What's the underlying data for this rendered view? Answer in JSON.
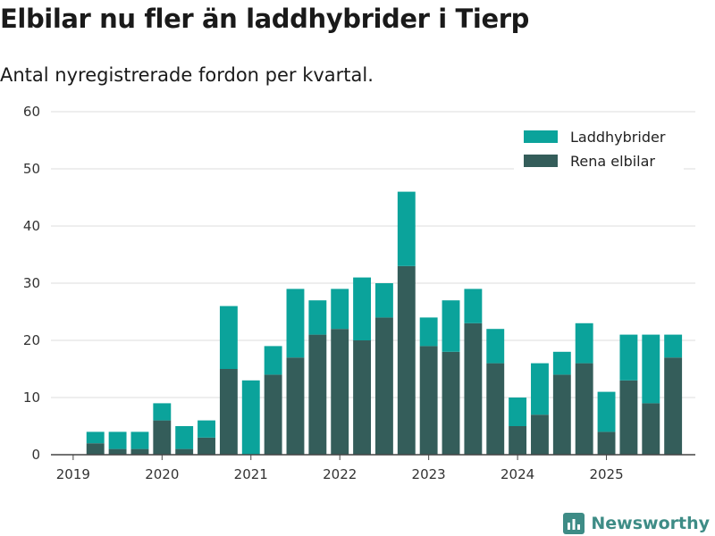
{
  "title": "Elbilar nu fler än laddhybrider i Tierp",
  "subtitle": "Antal nyregistrerade fordon per kvartal.",
  "brand": {
    "name": "Newsworthy",
    "icon": "newsworthy-logo-icon"
  },
  "colors": {
    "laddhybrider": "#0ba39b",
    "rena_elbilar": "#345d5a",
    "grid": "#dddddd",
    "axis": "#444444"
  },
  "chart_data": {
    "type": "bar",
    "stacked": true,
    "title": "Elbilar nu fler än laddhybrider i Tierp",
    "subtitle": "Antal nyregistrerade fordon per kvartal.",
    "xlabel": "",
    "ylabel": "",
    "ylim": [
      0,
      60
    ],
    "yticks": [
      0,
      10,
      20,
      30,
      40,
      50,
      60
    ],
    "xlim": [
      2018.75,
      2026.0
    ],
    "xticks": [
      2019,
      2020,
      2021,
      2022,
      2023,
      2024,
      2025
    ],
    "grid": true,
    "legend_position": "top-right",
    "categories": [
      "2019 Q2",
      "2019 Q3",
      "2019 Q4",
      "2020 Q1",
      "2020 Q2",
      "2020 Q3",
      "2020 Q4",
      "2021 Q1",
      "2021 Q2",
      "2021 Q3",
      "2021 Q4",
      "2022 Q1",
      "2022 Q2",
      "2022 Q3",
      "2022 Q4",
      "2023 Q1",
      "2023 Q2",
      "2023 Q3",
      "2023 Q4",
      "2024 Q1",
      "2024 Q2",
      "2024 Q3",
      "2024 Q4",
      "2025 Q1",
      "2025 Q2",
      "2025 Q3",
      "2025 Q4"
    ],
    "x": [
      2019.25,
      2019.5,
      2019.75,
      2020.0,
      2020.25,
      2020.5,
      2020.75,
      2021.0,
      2021.25,
      2021.5,
      2021.75,
      2022.0,
      2022.25,
      2022.5,
      2022.75,
      2023.0,
      2023.25,
      2023.5,
      2023.75,
      2024.0,
      2024.25,
      2024.5,
      2024.75,
      2025.0,
      2025.25,
      2025.5,
      2025.75
    ],
    "series": [
      {
        "name": "Rena elbilar",
        "values": [
          2,
          1,
          1,
          6,
          1,
          3,
          15,
          0,
          14,
          17,
          21,
          22,
          20,
          24,
          33,
          19,
          18,
          23,
          16,
          5,
          7,
          14,
          16,
          4,
          13,
          9,
          17
        ]
      },
      {
        "name": "Laddhybrider",
        "values": [
          2,
          3,
          3,
          3,
          4,
          3,
          11,
          13,
          5,
          12,
          6,
          7,
          11,
          6,
          13,
          5,
          9,
          6,
          6,
          5,
          9,
          4,
          7,
          7,
          8,
          12,
          4
        ]
      }
    ]
  }
}
